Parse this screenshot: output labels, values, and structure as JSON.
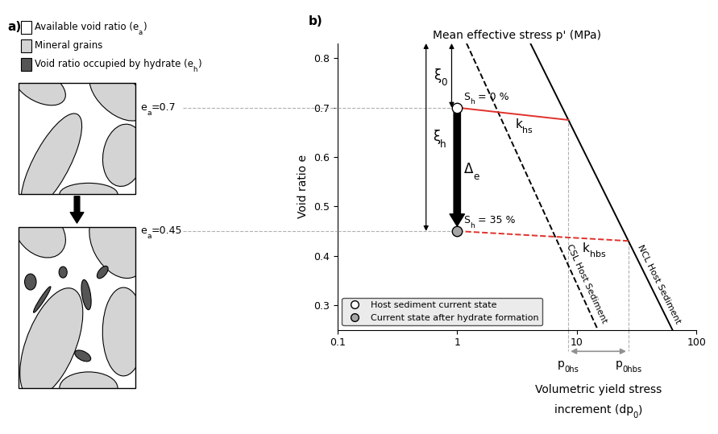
{
  "panel_a": {
    "label": "a)",
    "legend": [
      {
        "text": {
          "main": "Available void ratio (e",
          "sub": "a",
          "tail": ")"
        },
        "color": "#ffffff"
      },
      {
        "text": {
          "main": "Mineral grains"
        },
        "color": "#d4d4d4"
      },
      {
        "text": {
          "main": "Void ratio occupied by hydrate (e",
          "sub": "h",
          "tail": ")"
        },
        "color": "#555555"
      }
    ],
    "states": [
      {
        "text": {
          "main": "e",
          "sub": "a",
          "tail": "=0.7"
        },
        "e": 0.7
      },
      {
        "text": {
          "main": "e",
          "sub": "a",
          "tail": "=0.45"
        },
        "e": 0.45
      }
    ]
  },
  "chart_data": {
    "type": "line",
    "label": "b)",
    "xlabel": "Mean effective stress p' (MPa)",
    "ylabel": "Void ratio e",
    "log": "x",
    "xlim": [
      0.1,
      100
    ],
    "xticks": [
      0.1,
      1,
      10,
      100
    ],
    "ylim": [
      0.25,
      0.83
    ],
    "yticks": [
      0.3,
      0.4,
      0.5,
      0.6,
      0.7,
      0.8
    ],
    "legend": "lower left",
    "series": [
      {
        "label": "CSL Host Sediment",
        "color": "#000000",
        "line_style": "dashed",
        "x": [
          1.2,
          15
        ],
        "values": [
          0.83,
          0.25
        ]
      },
      {
        "label": "NCL Host Sediment",
        "color": "#000000",
        "line_style": "solid",
        "x": [
          4.1,
          63
        ],
        "values": [
          0.83,
          0.25
        ]
      },
      {
        "label": {
          "main": "k",
          "sub": "hs"
        },
        "color": "#e0312b",
        "line_style": "solid",
        "x": [
          1,
          8.5
        ],
        "values": [
          0.7,
          0.675
        ]
      },
      {
        "label": {
          "main": "k",
          "sub": "hbs"
        },
        "color": "#e0312b",
        "line_style": "dashed",
        "x": [
          1,
          27
        ],
        "values": [
          0.45,
          0.43
        ]
      }
    ],
    "points": [
      {
        "name": "Host sediment current state",
        "x": 1,
        "y": 0.7,
        "color": "#ffffff",
        "annotation": {
          "main": "S",
          "sub": "h",
          "tail": " = 0 %"
        }
      },
      {
        "name": "Current state after hydrate formation",
        "x": 1,
        "y": 0.45,
        "color": "#a6a6a6",
        "annotation": {
          "main": "S",
          "sub": "h",
          "tail": " = 35 %"
        }
      }
    ],
    "arrows": [
      {
        "label": {
          "main": "ξ",
          "sub": "0"
        },
        "type": "double",
        "x": 0.9,
        "from": 0.83,
        "to": 0.7
      },
      {
        "label": {
          "main": "ξ",
          "sub": "h"
        },
        "type": "double",
        "x": 0.55,
        "from": 0.83,
        "to": 0.45
      },
      {
        "label": {
          "main": "Δ",
          "sub": "e"
        },
        "type": "single",
        "x": 1,
        "from": 0.69,
        "to": 0.46
      }
    ],
    "yield_stress": {
      "points": [
        {
          "label": {
            "main": "p",
            "sub": "0hs"
          },
          "x": 8.5,
          "y": 0.675
        },
        {
          "label": {
            "main": "p",
            "sub": "0hbs"
          },
          "x": 27,
          "y": 0.43
        }
      ],
      "caption": [
        {
          "main": "Volumetric yield stress"
        },
        {
          "main": "increment (dp",
          "sub": "0",
          "tail": ")"
        }
      ]
    }
  }
}
